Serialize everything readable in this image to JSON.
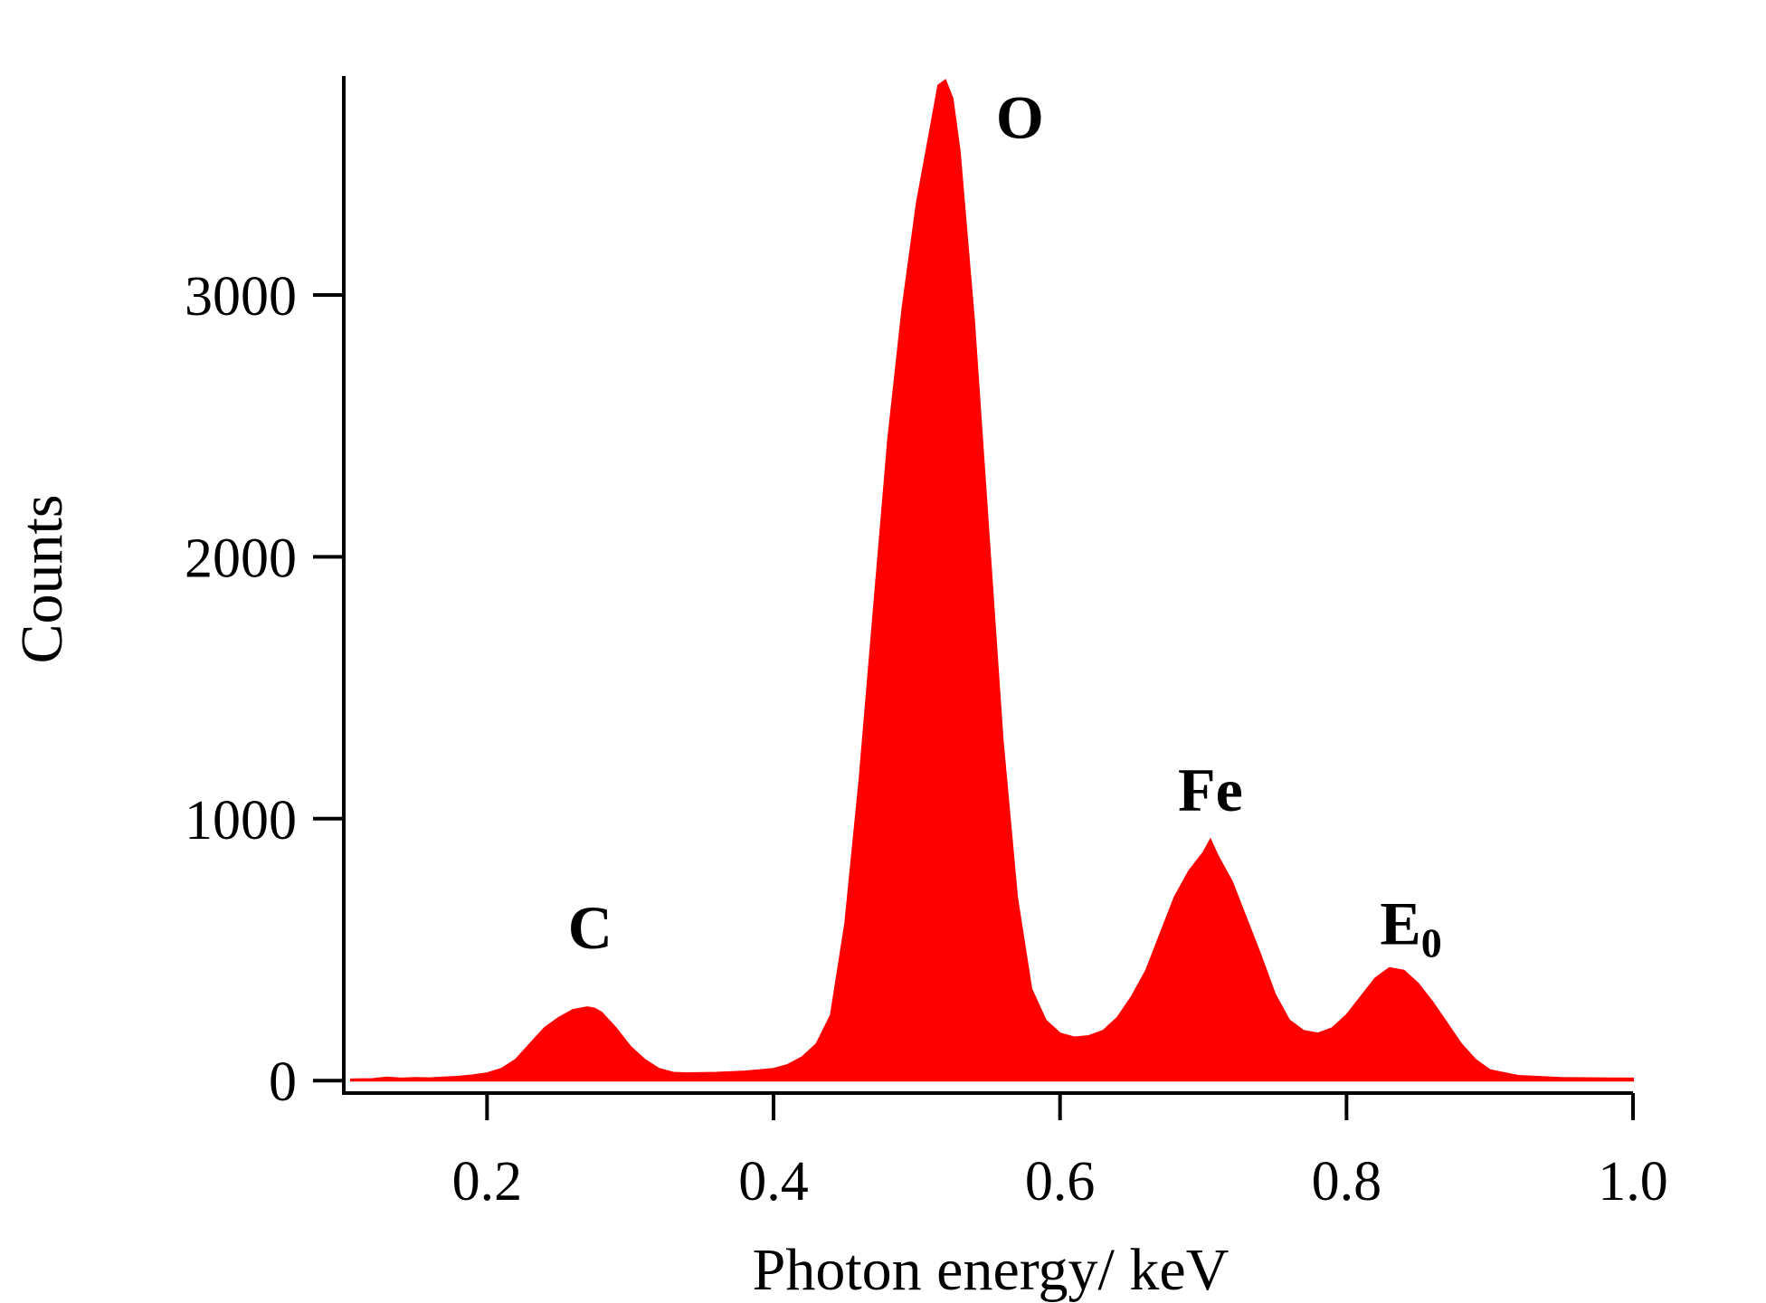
{
  "chart_data": {
    "type": "area",
    "title": "",
    "xlabel": "Photon energy/ keV",
    "ylabel": "Counts",
    "xlim": [
      0.1,
      1.0
    ],
    "ylim": [
      -20,
      3850
    ],
    "x_ticks": [
      0.2,
      0.4,
      0.6,
      0.8,
      1.0
    ],
    "x_tick_labels": [
      "0.2",
      "0.4",
      "0.6",
      "0.8",
      "1.0"
    ],
    "y_ticks": [
      0,
      1000,
      2000,
      3000
    ],
    "y_tick_labels": [
      "0",
      "1000",
      "2000",
      "3000"
    ],
    "grid": false,
    "legend": "none",
    "fill_color": "#ff0000",
    "series": [
      {
        "x": [
          0.105,
          0.12,
          0.13,
          0.14,
          0.15,
          0.16,
          0.17,
          0.18,
          0.19,
          0.2,
          0.21,
          0.22,
          0.23,
          0.24,
          0.25,
          0.26,
          0.27,
          0.275,
          0.28,
          0.29,
          0.3,
          0.31,
          0.32,
          0.33,
          0.34,
          0.36,
          0.38,
          0.4,
          0.41,
          0.42,
          0.43,
          0.44,
          0.45,
          0.46,
          0.47,
          0.48,
          0.49,
          0.5,
          0.51,
          0.515,
          0.52,
          0.525,
          0.53,
          0.54,
          0.55,
          0.56,
          0.57,
          0.58,
          0.59,
          0.6,
          0.61,
          0.62,
          0.63,
          0.64,
          0.65,
          0.66,
          0.67,
          0.68,
          0.69,
          0.7,
          0.705,
          0.71,
          0.72,
          0.73,
          0.74,
          0.75,
          0.76,
          0.77,
          0.78,
          0.79,
          0.8,
          0.81,
          0.82,
          0.83,
          0.84,
          0.85,
          0.86,
          0.87,
          0.88,
          0.89,
          0.9,
          0.92,
          0.95,
          1.0
        ],
        "y": [
          5,
          6,
          12,
          8,
          10,
          9,
          12,
          15,
          20,
          28,
          45,
          80,
          140,
          200,
          240,
          270,
          280,
          275,
          260,
          200,
          130,
          80,
          45,
          30,
          28,
          30,
          35,
          45,
          60,
          90,
          140,
          250,
          600,
          1150,
          1800,
          2450,
          2950,
          3350,
          3650,
          3800,
          3820,
          3750,
          3550,
          2900,
          2100,
          1300,
          700,
          350,
          230,
          180,
          165,
          170,
          190,
          240,
          320,
          420,
          560,
          700,
          800,
          870,
          920,
          860,
          760,
          620,
          480,
          330,
          230,
          190,
          180,
          200,
          250,
          320,
          390,
          430,
          420,
          370,
          300,
          220,
          140,
          80,
          40,
          18,
          10,
          8
        ]
      }
    ],
    "annotations": [
      {
        "text": "C",
        "x": 0.272,
        "y": 505
      },
      {
        "text": "O",
        "x": 0.572,
        "y": 3600
      },
      {
        "text": "Fe",
        "x": 0.705,
        "y": 1030
      },
      {
        "text": "E",
        "subscript": "0",
        "x": 0.845,
        "y": 520
      }
    ]
  }
}
